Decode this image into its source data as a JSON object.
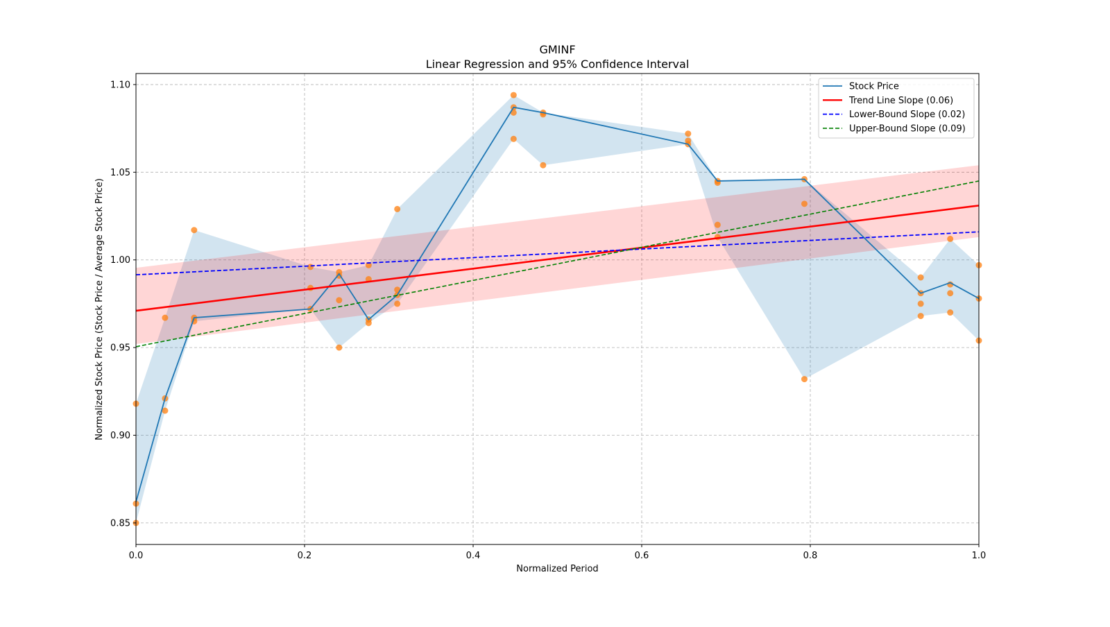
{
  "chart_data": {
    "type": "line",
    "title": "GMINF",
    "subtitle": "Linear Regression and 95% Confidence Interval",
    "xlabel": "Normalized Period",
    "ylabel": "Normalized Stock Price (Stock Price / Average Stock Price)",
    "xlim": [
      0,
      1
    ],
    "ylim": [
      0.8377,
      1.1063
    ],
    "xticks": [
      "0.0",
      "0.2",
      "0.4",
      "0.6",
      "0.8",
      "1.0"
    ],
    "xtick_values": [
      0,
      0.2,
      0.4,
      0.6,
      0.8,
      1.0
    ],
    "yticks": [
      "0.85",
      "0.90",
      "0.95",
      "1.00",
      "1.05",
      "1.10"
    ],
    "ytick_values": [
      0.85,
      0.9,
      0.95,
      1.0,
      1.05,
      1.1
    ],
    "grid": true,
    "legend_position": "top-right",
    "legend": [
      "Stock Price",
      "Trend Line Slope (0.06)",
      "Lower-Bound Slope (0.02)",
      "Upper-Bound Slope (0.09)"
    ],
    "colors": {
      "price": "#1f77b4",
      "band": "#1f77b4",
      "scatter": "#ff7f0e",
      "trend": "#ff0000",
      "trend_ci": "#ff0000",
      "lower": "#0000ff",
      "upper": "#008000"
    },
    "x": [
      0,
      0.0345,
      0.069,
      0.207,
      0.241,
      0.276,
      0.31,
      0.448,
      0.483,
      0.655,
      0.69,
      0.793,
      0.931,
      0.966,
      1.0
    ],
    "stock_price": [
      0.862,
      0.921,
      0.967,
      0.972,
      0.992,
      0.966,
      0.98,
      1.087,
      1.084,
      1.066,
      1.045,
      1.046,
      0.981,
      0.987,
      0.978
    ],
    "scatter": [
      [
        0.918,
        0.861,
        0.85
      ],
      [
        0.967,
        0.921,
        0.914
      ],
      [
        1.017,
        0.967,
        0.965
      ],
      [
        0.996,
        0.984,
        0.972
      ],
      [
        0.993,
        0.991,
        0.977,
        0.95
      ],
      [
        0.997,
        0.989,
        0.966,
        0.964
      ],
      [
        1.029,
        0.983,
        0.98,
        0.975
      ],
      [
        1.094,
        1.087,
        1.084,
        1.069
      ],
      [
        1.084,
        1.083,
        1.054
      ],
      [
        1.072,
        1.068,
        1.066
      ],
      [
        1.045,
        1.044,
        1.02,
        1.013
      ],
      [
        1.046,
        1.032,
        0.932
      ],
      [
        0.99,
        0.981,
        0.975,
        0.968
      ],
      [
        1.012,
        0.986,
        0.981,
        0.97
      ],
      [
        0.997,
        0.978,
        0.954
      ]
    ],
    "trend_line": {
      "intercept": 0.971,
      "end": 1.031,
      "slope": 0.06
    },
    "trend_ci": {
      "lower": [
        0.952,
        1.013
      ],
      "upper": [
        0.9955,
        1.054
      ]
    },
    "lower_bound_line": {
      "intercept": 0.9915,
      "end": 1.016,
      "slope": 0.02
    },
    "upper_bound_line": {
      "intercept": 0.9505,
      "end": 1.045,
      "slope": 0.09
    }
  }
}
